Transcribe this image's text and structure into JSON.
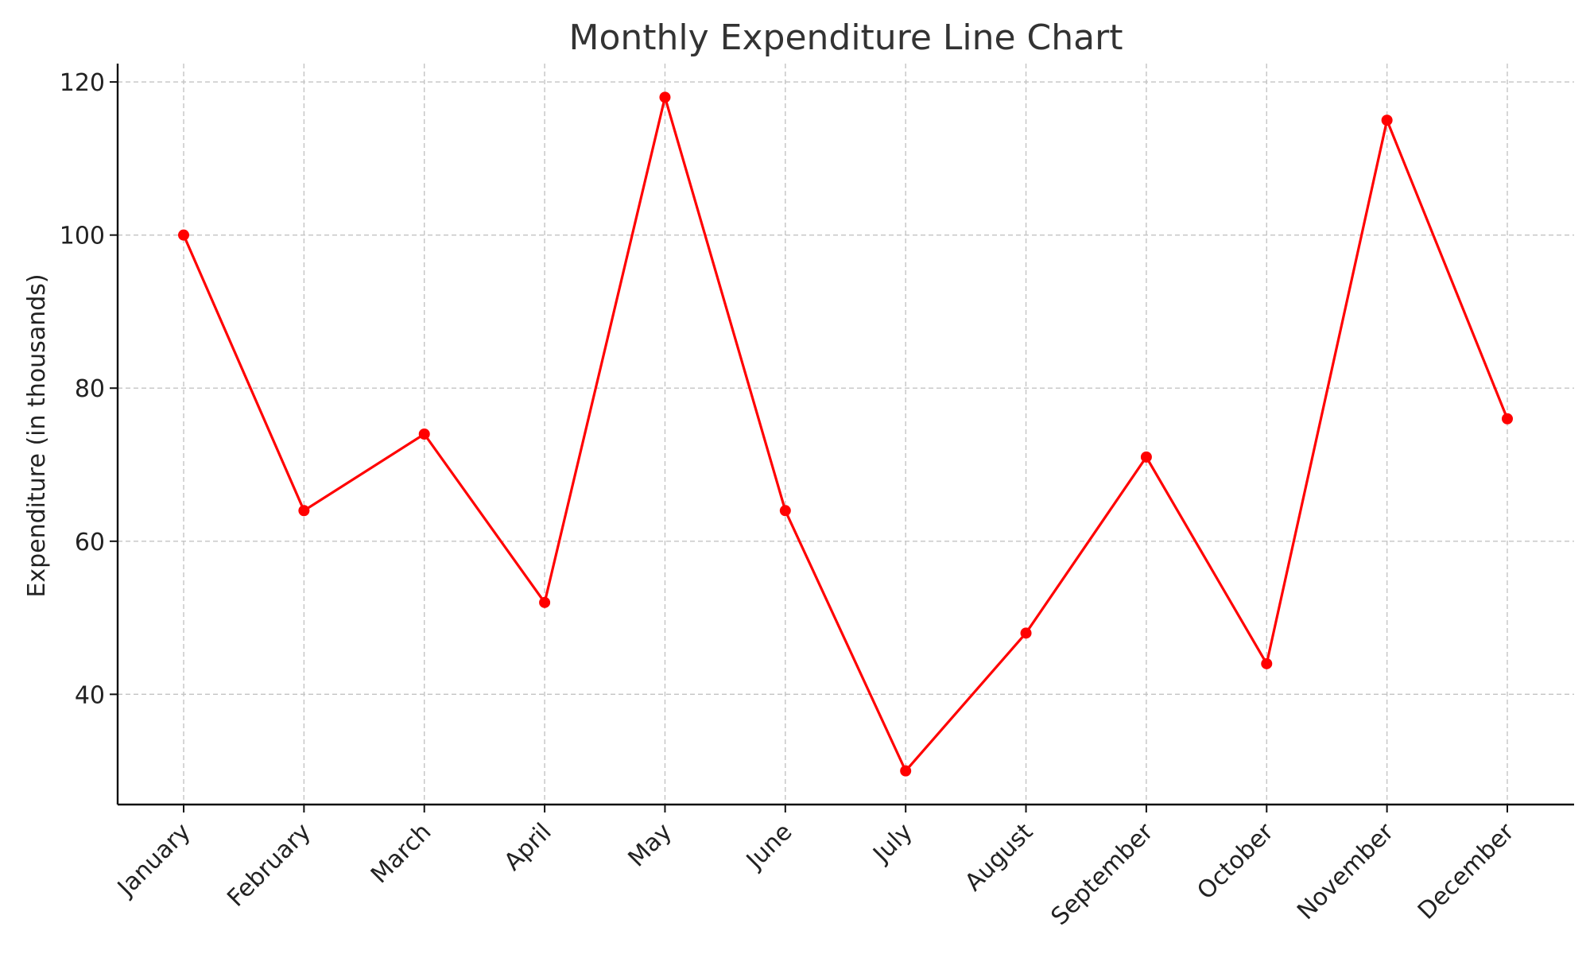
{
  "chart_data": {
    "type": "line",
    "title": "Monthly Expenditure Line Chart",
    "xlabel": "",
    "ylabel": "Expenditure (in thousands)",
    "categories": [
      "January",
      "February",
      "March",
      "April",
      "May",
      "June",
      "July",
      "August",
      "September",
      "October",
      "November",
      "December"
    ],
    "series": [
      {
        "values": [
          100,
          64,
          74,
          52,
          118,
          64,
          30,
          48,
          71,
          44,
          115,
          76
        ],
        "color": "#ff0000",
        "marker": "circle"
      }
    ],
    "yticks": [
      40,
      60,
      80,
      100,
      120
    ],
    "ylim": [
      25.6,
      122.4
    ],
    "grid": true,
    "legend": "none"
  }
}
